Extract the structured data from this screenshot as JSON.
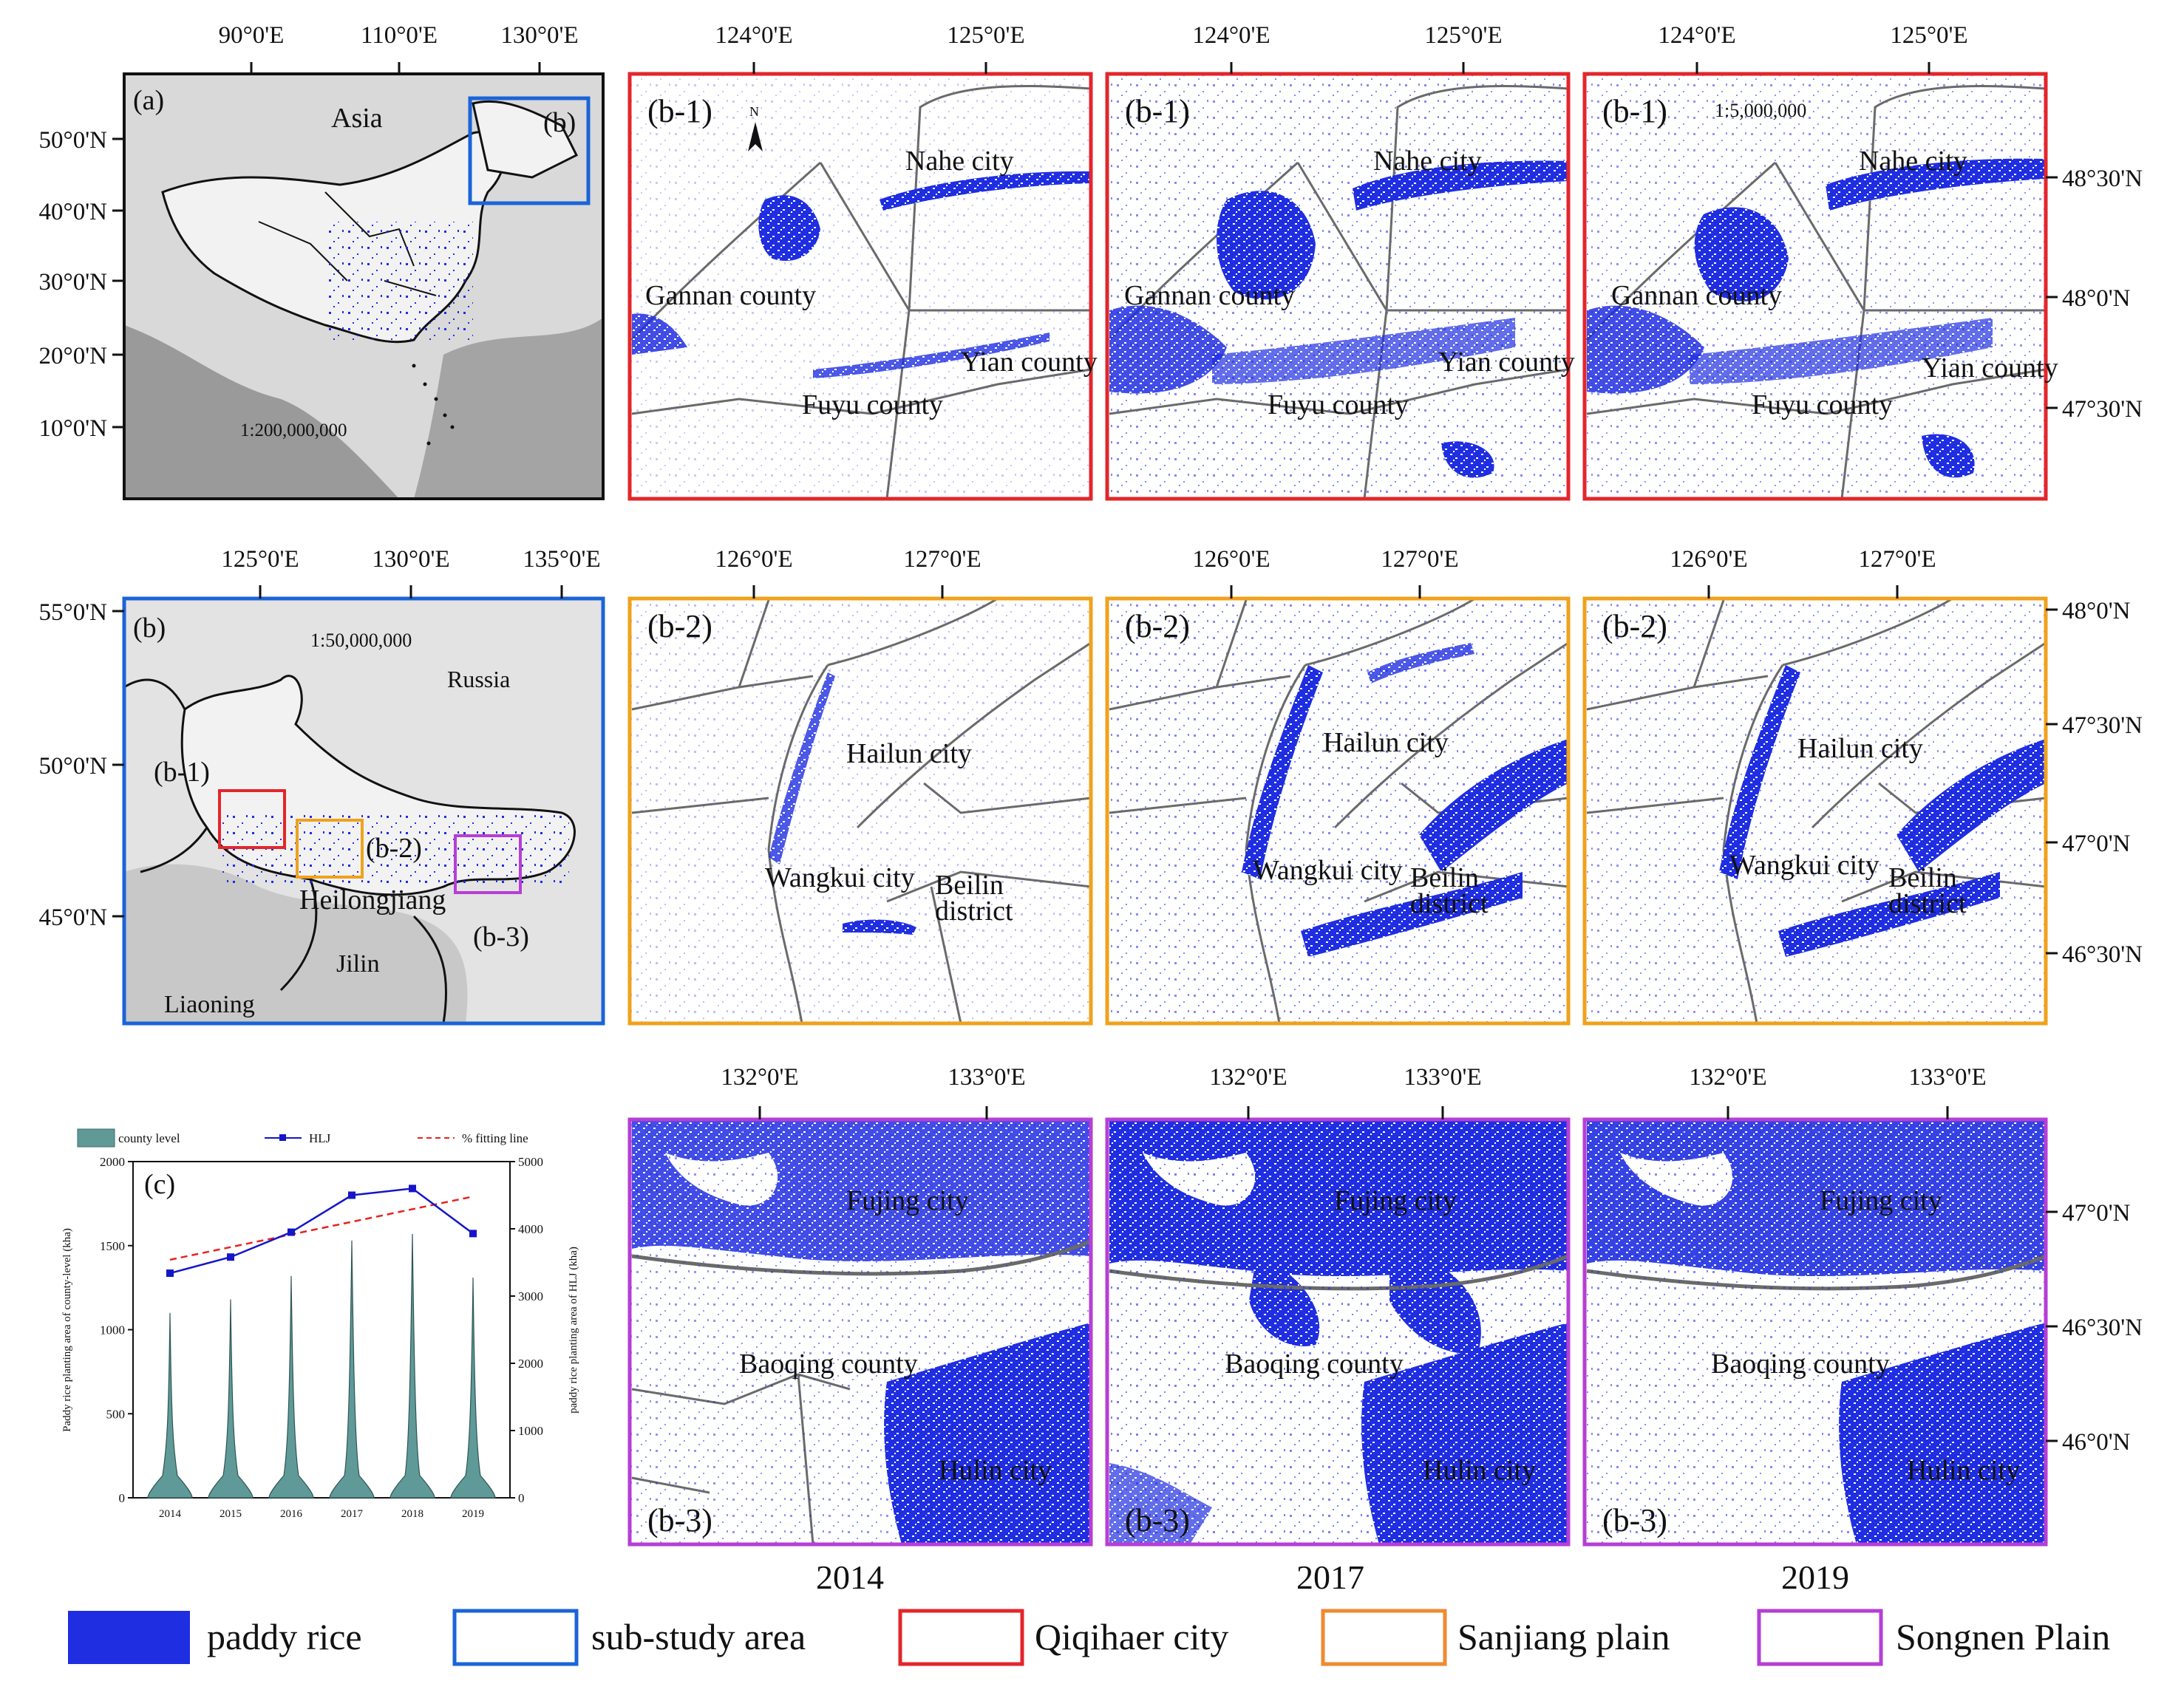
{
  "colors": {
    "rice": "#1f2ee0",
    "sub_study": "#1b64d8",
    "qiqihaer": "#e3262b",
    "sanjiang": "#f0a21c",
    "songnen": "#b63ed6",
    "border": "#6a6a6a"
  },
  "panel_a": {
    "label": "(a)",
    "inset_label": "(b)",
    "lon_ticks": [
      "90°0'E",
      "110°0'E",
      "130°0'E"
    ],
    "lat_ticks": [
      "50°0'N",
      "40°0'N",
      "30°0'N",
      "20°0'N",
      "10°0'N"
    ],
    "region": "Asia",
    "scale": "1:200,000,000"
  },
  "panel_b": {
    "label": "(b)",
    "lon_ticks": [
      "125°0'E",
      "130°0'E",
      "135°0'E"
    ],
    "lat_ticks": [
      "55°0'N",
      "50°0'N",
      "45°0'N"
    ],
    "scale": "1:50,000,000",
    "places": [
      "Russia",
      "Heilongjiang",
      "Jilin",
      "Liaoning"
    ],
    "boxes": [
      "(b-1)",
      "(b-2)",
      "(b-3)"
    ]
  },
  "row1": {
    "label": "(b-1)",
    "lon_ticks": [
      "124°0'E",
      "125°0'E"
    ],
    "lat_ticks": [
      "48°30'N",
      "48°0'N",
      "47°30'N"
    ],
    "north": "N",
    "scale": "1:5,000,000",
    "places": [
      "Nahe city",
      "Gannan county",
      "Yian county",
      "Fuyu county"
    ]
  },
  "row2": {
    "label": "(b-2)",
    "lon_ticks": [
      "126°0'E",
      "127°0'E"
    ],
    "lat_ticks": [
      "48°0'N",
      "47°30'N",
      "47°0'N",
      "46°30'N"
    ],
    "places": [
      "Hailun city",
      "Wangkui city",
      "Beilin",
      "district"
    ]
  },
  "row3": {
    "label": "(b-3)",
    "lon_ticks": [
      "132°0'E",
      "133°0'E"
    ],
    "lat_ticks": [
      "47°0'N",
      "46°30'N",
      "46°0'N"
    ],
    "places": [
      "Fujing city",
      "Baoqing county",
      "Hulin city"
    ]
  },
  "years": [
    "2014",
    "2017",
    "2019"
  ],
  "chart_data": {
    "type": "violin+line",
    "panel_label": "(c)",
    "categories": [
      "2014",
      "2015",
      "2016",
      "2017",
      "2018",
      "2019"
    ],
    "legend": [
      "county level",
      "HLJ",
      "% fitting line"
    ],
    "ylabel_left": "Paddy rice planting area of county-level (kha)",
    "ylabel_right": "paddy rice planting area of HLJ (kha)",
    "y_left_ticks": [
      "0",
      "500",
      "1000",
      "1500",
      "2000"
    ],
    "y_right_ticks": [
      "0",
      "1000",
      "2000",
      "3000",
      "4000",
      "5000"
    ],
    "ylim_left": [
      0,
      2000
    ],
    "ylim_right": [
      0,
      5000
    ],
    "series": [
      {
        "name": "county level (max)",
        "values": [
          1100,
          1180,
          1320,
          1530,
          1570,
          1310
        ]
      },
      {
        "name": "HLJ",
        "values": [
          3340,
          3580,
          3950,
          4500,
          4600,
          3930
        ]
      },
      {
        "name": "% fitting line",
        "start": 3540,
        "end": 4480
      }
    ]
  },
  "legend": [
    {
      "key": "rice",
      "label": "paddy rice"
    },
    {
      "key": "sub",
      "label": "sub-study area"
    },
    {
      "key": "qiqi",
      "label": "Qiqihaer city"
    },
    {
      "key": "sanjiang",
      "label": "Sanjiang plain"
    },
    {
      "key": "songnen",
      "label": "Songnen Plain"
    }
  ]
}
